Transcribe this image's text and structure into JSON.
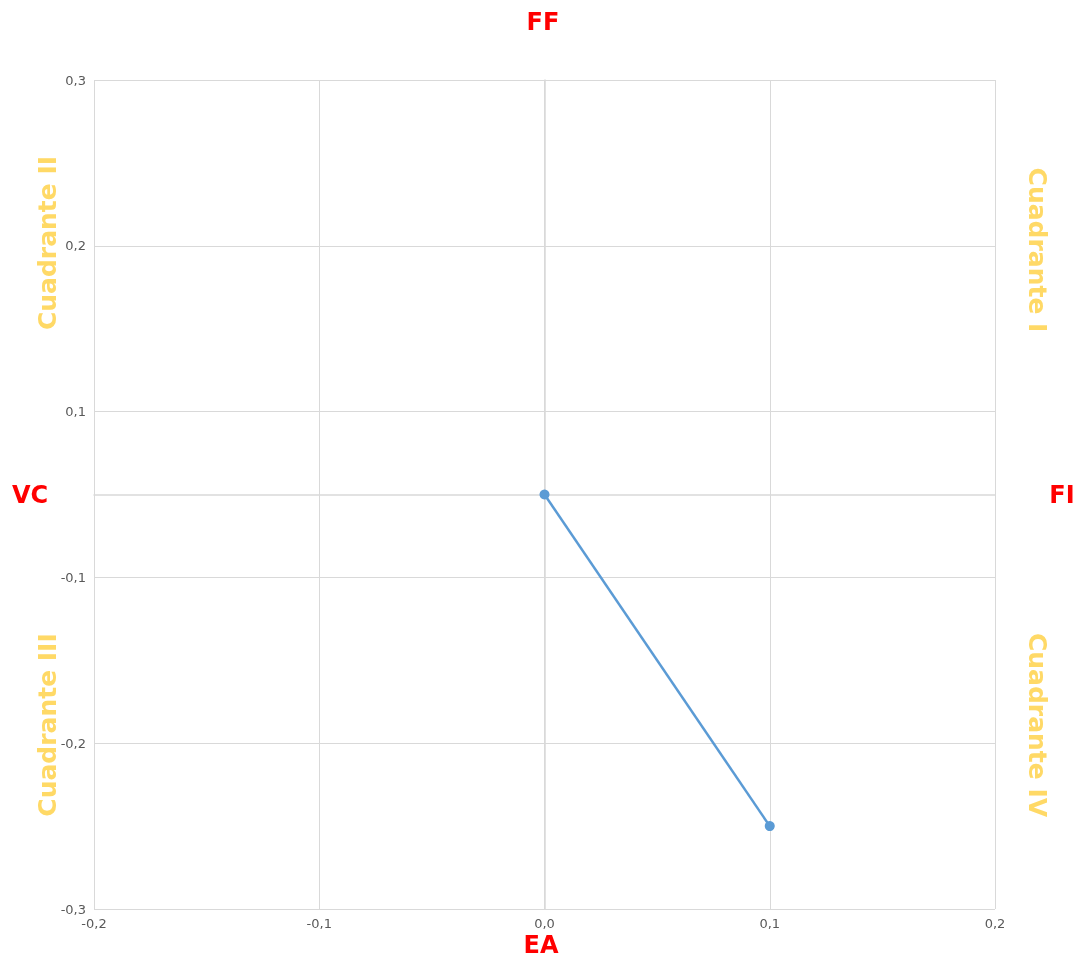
{
  "chart_data": {
    "type": "line",
    "x": [
      0,
      0.1
    ],
    "series": [
      {
        "color": "#5b9bd5",
        "values": [
          0,
          -0.24
        ]
      }
    ],
    "xlim": [
      -0.2,
      0.2
    ],
    "xticks": [
      {
        "value": -0.2,
        "label": "-0,2"
      },
      {
        "value": -0.1,
        "label": "-0,1"
      },
      {
        "value": 0,
        "label": "0,0"
      },
      {
        "value": 0.1,
        "label": "0,1"
      },
      {
        "value": 0.2,
        "label": "0,2"
      }
    ],
    "ylim": [
      -0.3,
      0.3
    ],
    "yticks": [
      {
        "value": -0.3,
        "label": "-0,3"
      },
      {
        "value": -0.18,
        "label": "-0,2"
      },
      {
        "value": -0.06,
        "label": "-0,1"
      },
      {
        "value": 0.06,
        "label": "0,1"
      },
      {
        "value": 0.18,
        "label": "0,2"
      },
      {
        "value": 0.3,
        "label": "0,3"
      }
    ],
    "grid": true,
    "marker": "circle",
    "line_style": "solid",
    "annotations": [
      "FF",
      "VC",
      "FI",
      "EA",
      "Cuadrante II",
      "Cuadrante I",
      "Cuadrante III",
      "Cuadrante IV"
    ]
  }
}
